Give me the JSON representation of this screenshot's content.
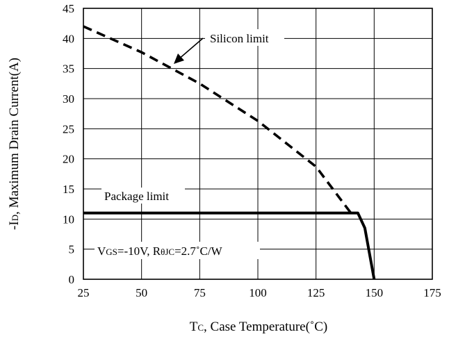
{
  "chart_data": {
    "type": "line",
    "xlabel": {
      "main": "T",
      "sub": "C",
      "rest": ", Case Temperature(˚C)"
    },
    "ylabel": {
      "pre": "-I",
      "sub": "D",
      "rest": ", Maximum Drain Current(A)"
    },
    "xlim": [
      25,
      175
    ],
    "ylim": [
      0,
      45
    ],
    "xticks": [
      25,
      50,
      75,
      100,
      125,
      150,
      175
    ],
    "yticks": [
      0,
      5,
      10,
      15,
      20,
      25,
      30,
      35,
      40,
      45
    ],
    "grid": true,
    "series": [
      {
        "style": "dashed",
        "x": [
          25,
          50,
          75,
          100,
          125,
          140
        ],
        "y": [
          42,
          37.7,
          32.5,
          26.3,
          18.7,
          11
        ]
      },
      {
        "style": "solid",
        "x": [
          25,
          143,
          146,
          150
        ],
        "y": [
          11,
          11,
          8.5,
          0
        ]
      }
    ],
    "annotations": {
      "silicon": "Silicon limit",
      "package": "Package limit",
      "cond_v": "V",
      "cond_v_sub": "GS",
      "cond_v_rest": "=-10V, R",
      "cond_r_sub": "θJC",
      "cond_r_rest": "=2.7˚C/W"
    }
  }
}
